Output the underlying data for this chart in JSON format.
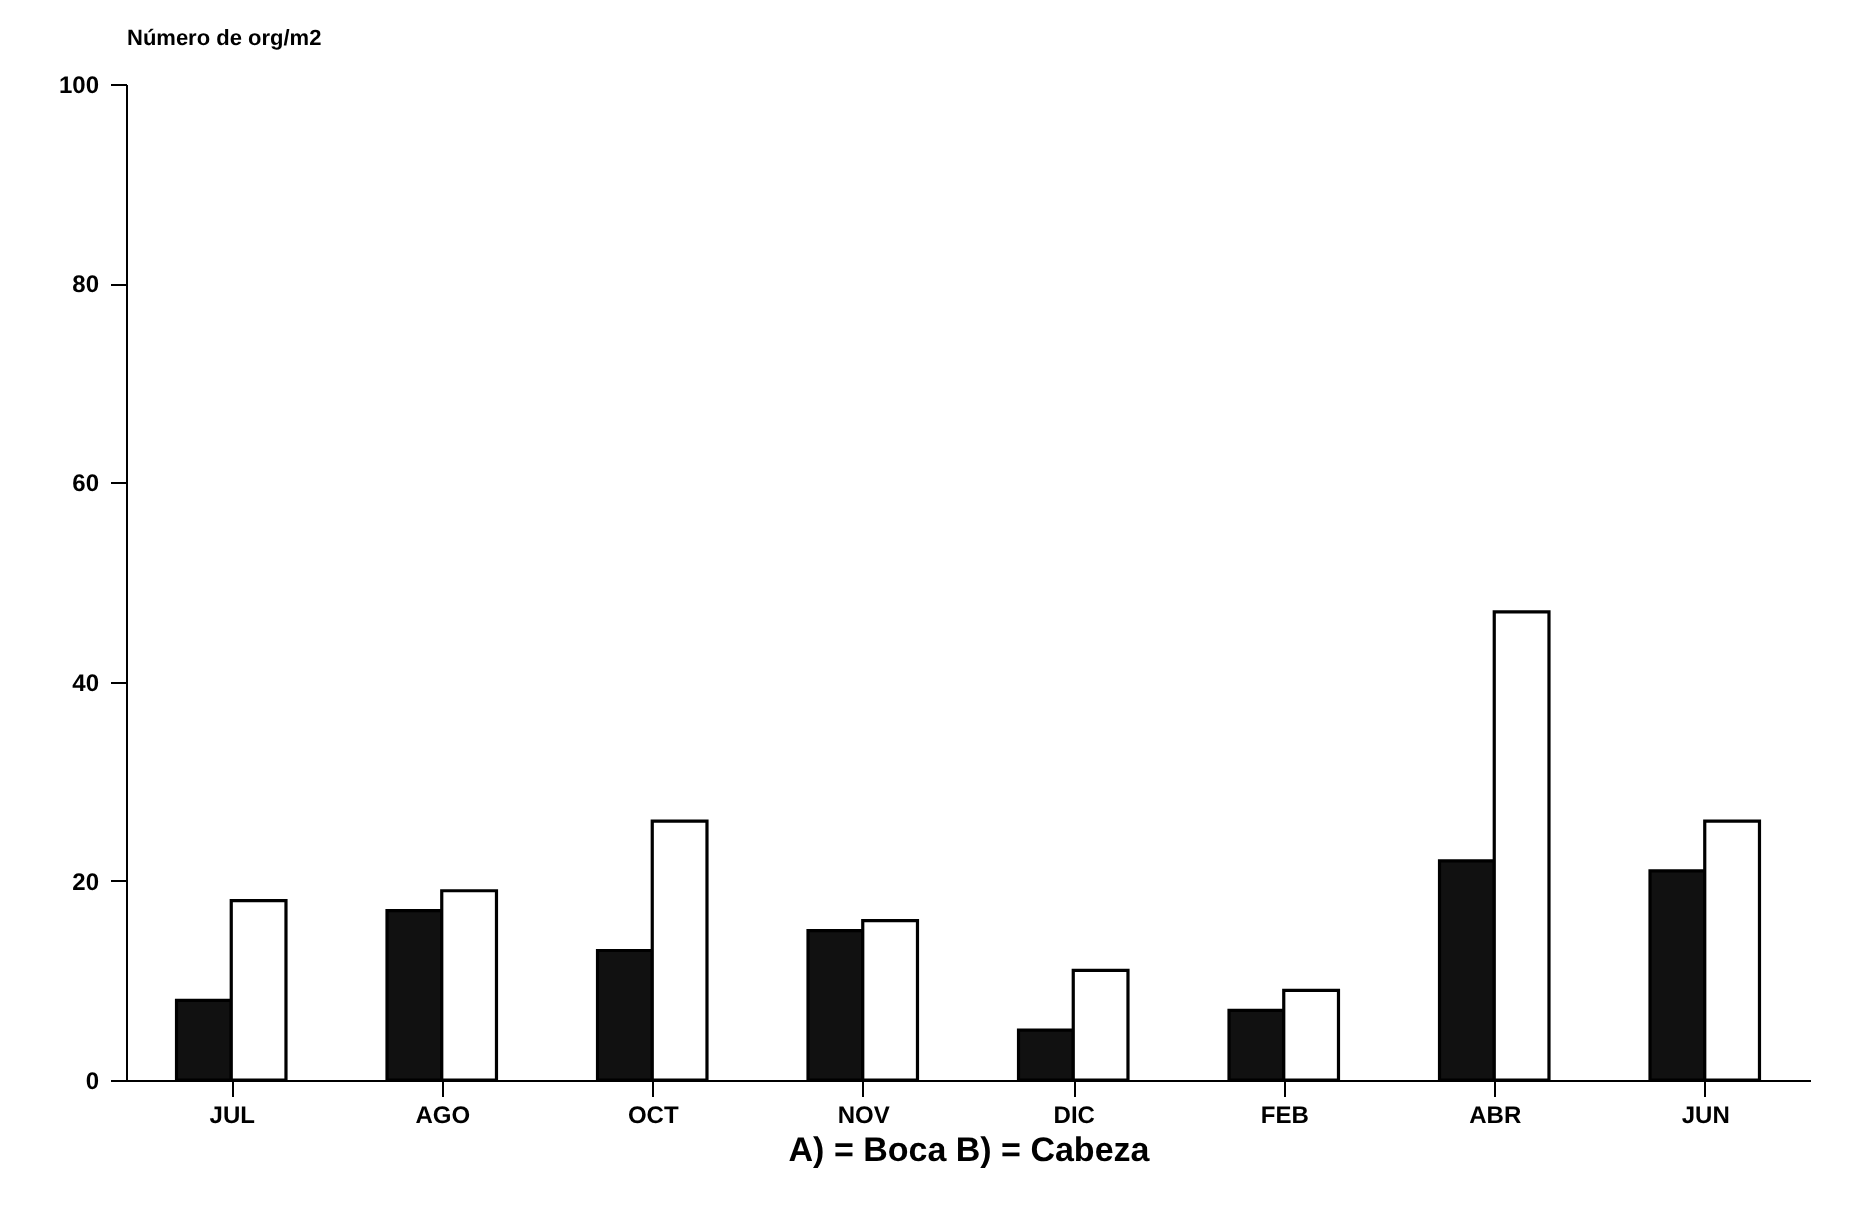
{
  "chart_data": {
    "type": "bar",
    "ylabel": "Número de org/m2",
    "xlabel": "A) = Boca      B) = Cabeza",
    "categories": [
      "JUL",
      "AGO",
      "OCT",
      "NOV",
      "DIC",
      "FEB",
      "ABR",
      "JUN"
    ],
    "series": [
      {
        "color": "#111111",
        "values": [
          8,
          17,
          13,
          15,
          5,
          7,
          22,
          21
        ]
      },
      {
        "color": "#ffffff",
        "values": [
          18,
          19,
          26,
          16,
          11,
          9,
          47,
          26
        ]
      }
    ],
    "ylim": [
      0,
      100
    ],
    "yticks": [
      0,
      20,
      40,
      60,
      80,
      100
    ],
    "grid": false,
    "legend": false
  }
}
